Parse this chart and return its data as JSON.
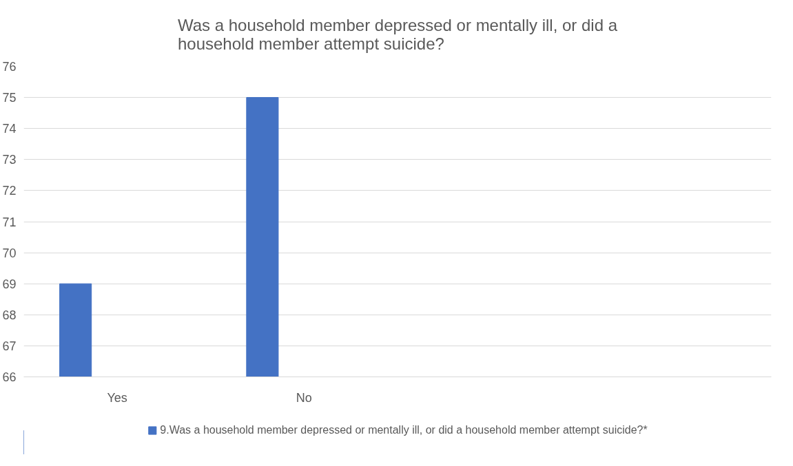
{
  "chart_data": {
    "type": "bar",
    "title": "Was a household member depressed or mentally ill, or did a household member attempt suicide?",
    "categories": [
      "Yes",
      "No",
      null,
      null
    ],
    "series": [
      {
        "name": "9.Was a household member depressed or mentally ill, or did a household member attempt suicide?*",
        "color": "#4472c4",
        "values": [
          69,
          75,
          null,
          null
        ]
      }
    ],
    "ylim": [
      66,
      76
    ],
    "yticks": [
      66,
      67,
      68,
      69,
      70,
      71,
      72,
      73,
      74,
      75,
      76
    ],
    "grid": "y",
    "legend": "bottom"
  }
}
